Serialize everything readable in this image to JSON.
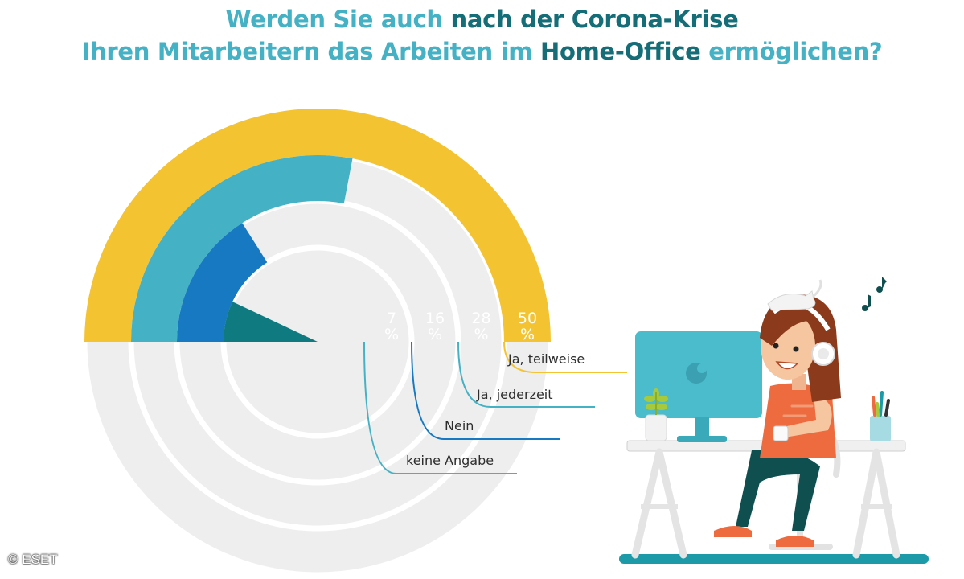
{
  "title": {
    "line1": [
      {
        "text": "Werden Sie auch ",
        "tone": "light"
      },
      {
        "text": "nach der Corona-Krise",
        "tone": "dark"
      }
    ],
    "line2": [
      {
        "text": "Ihren Mitarbeitern das Arbeiten im ",
        "tone": "light"
      },
      {
        "text": "Home-Office",
        "tone": "dark"
      },
      {
        "text": " ermöglichen?",
        "tone": "light"
      }
    ]
  },
  "chart_data": {
    "type": "radial-bar",
    "title": "Werden Sie auch nach der Corona-Krise Ihren Mitarbeitern das Arbeiten im Home-Office ermöglichen?",
    "unit": "%",
    "series": [
      {
        "category": "Ja, teilweise",
        "value": 50,
        "value_label": "50 %",
        "color": "#f4c332"
      },
      {
        "category": "Ja, jederzeit",
        "value": 28,
        "value_label": "28 %",
        "color": "#45b1c4"
      },
      {
        "category": "Nein",
        "value": 16,
        "value_label": "16 %",
        "color": "#1779c1"
      },
      {
        "category": "keine Angabe",
        "value": 7,
        "value_label": "7 %",
        "color": "#0f7b80"
      }
    ],
    "track_color": "#eeeeee",
    "full_scale": 100
  },
  "copyright": "© ESET"
}
